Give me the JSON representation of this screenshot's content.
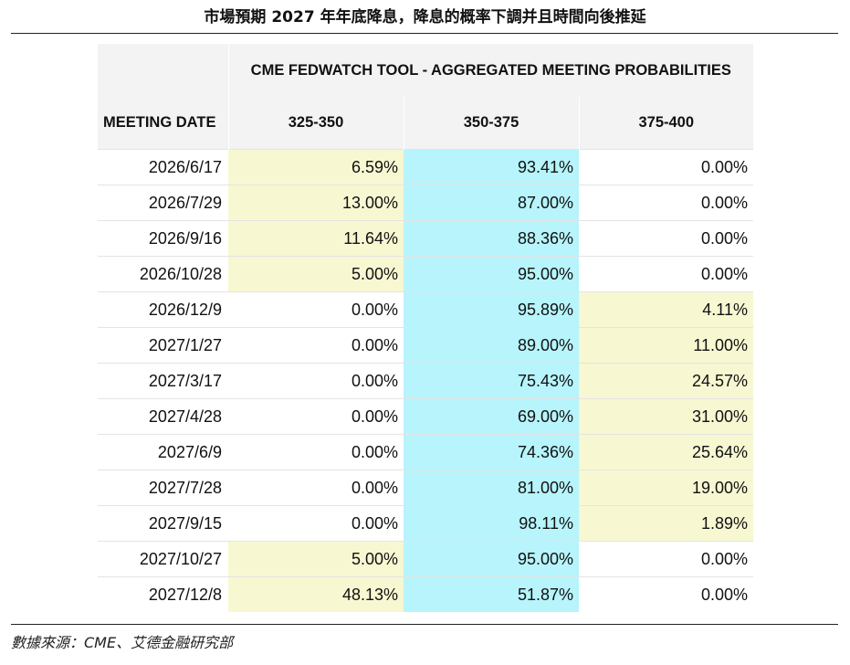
{
  "title": "市場預期 2027 年年底降息，降息的概率下調并且時間向後推延",
  "source": "數據來源：CME、艾德金融研究部",
  "colors": {
    "yellow": "#f7f7d2",
    "cyan": "#b7f4fb",
    "header": "#f3f3f3"
  },
  "chart_data": {
    "type": "table",
    "title": "CME FEDWATCH TOOL - AGGREGATED MEETING PROBABILITIES",
    "columns": [
      "MEETING DATE",
      "325-350",
      "350-375",
      "375-400"
    ],
    "rows": [
      {
        "date": "2026/6/17",
        "values": [
          "6.59%",
          "93.41%",
          "0.00%"
        ],
        "highlight": [
          "yellow",
          "cyan",
          "none"
        ]
      },
      {
        "date": "2026/7/29",
        "values": [
          "13.00%",
          "87.00%",
          "0.00%"
        ],
        "highlight": [
          "yellow",
          "cyan",
          "none"
        ]
      },
      {
        "date": "2026/9/16",
        "values": [
          "11.64%",
          "88.36%",
          "0.00%"
        ],
        "highlight": [
          "yellow",
          "cyan",
          "none"
        ]
      },
      {
        "date": "2026/10/28",
        "values": [
          "5.00%",
          "95.00%",
          "0.00%"
        ],
        "highlight": [
          "yellow",
          "cyan",
          "none"
        ]
      },
      {
        "date": "2026/12/9",
        "values": [
          "0.00%",
          "95.89%",
          "4.11%"
        ],
        "highlight": [
          "none",
          "cyan",
          "yellow"
        ]
      },
      {
        "date": "2027/1/27",
        "values": [
          "0.00%",
          "89.00%",
          "11.00%"
        ],
        "highlight": [
          "none",
          "cyan",
          "yellow"
        ]
      },
      {
        "date": "2027/3/17",
        "values": [
          "0.00%",
          "75.43%",
          "24.57%"
        ],
        "highlight": [
          "none",
          "cyan",
          "yellow"
        ]
      },
      {
        "date": "2027/4/28",
        "values": [
          "0.00%",
          "69.00%",
          "31.00%"
        ],
        "highlight": [
          "none",
          "cyan",
          "yellow"
        ]
      },
      {
        "date": "2027/6/9",
        "values": [
          "0.00%",
          "74.36%",
          "25.64%"
        ],
        "highlight": [
          "none",
          "cyan",
          "yellow"
        ]
      },
      {
        "date": "2027/7/28",
        "values": [
          "0.00%",
          "81.00%",
          "19.00%"
        ],
        "highlight": [
          "none",
          "cyan",
          "yellow"
        ]
      },
      {
        "date": "2027/9/15",
        "values": [
          "0.00%",
          "98.11%",
          "1.89%"
        ],
        "highlight": [
          "none",
          "cyan",
          "yellow"
        ]
      },
      {
        "date": "2027/10/27",
        "values": [
          "5.00%",
          "95.00%",
          "0.00%"
        ],
        "highlight": [
          "yellow",
          "cyan",
          "none"
        ]
      },
      {
        "date": "2027/12/8",
        "values": [
          "48.13%",
          "51.87%",
          "0.00%"
        ],
        "highlight": [
          "yellow",
          "cyan",
          "none"
        ]
      }
    ]
  }
}
